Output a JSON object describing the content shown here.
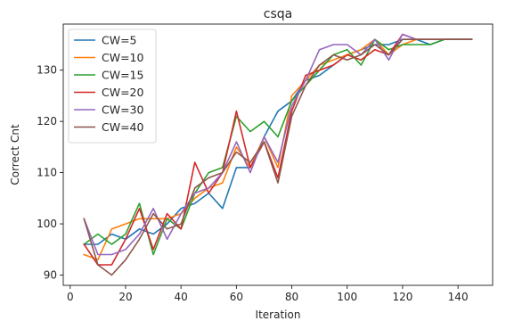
{
  "chart_data": {
    "type": "line",
    "title": "csqa",
    "xlabel": "Iteration",
    "ylabel": "Correct Cnt",
    "xlim": [
      -2.5,
      152.5
    ],
    "ylim": [
      88,
      139
    ],
    "xticks": [
      0,
      20,
      40,
      60,
      80,
      100,
      120,
      140
    ],
    "yticks": [
      90,
      100,
      110,
      120,
      130
    ],
    "grid": false,
    "legend_position": "top-left",
    "x": [
      5,
      10,
      15,
      20,
      25,
      30,
      35,
      40,
      45,
      50,
      55,
      60,
      65,
      70,
      75,
      80,
      85,
      90,
      95,
      100,
      105,
      110,
      115,
      120,
      125,
      130,
      135,
      140,
      145
    ],
    "series": [
      {
        "name": "CW=5",
        "color": "#1f77b4",
        "values": [
          96,
          96,
          98,
          97,
          99,
          98,
          100,
          103,
          104,
          106,
          103,
          111,
          111,
          117,
          122,
          124,
          128,
          129,
          131,
          133,
          134,
          135,
          135,
          136,
          136,
          135,
          136,
          136,
          136
        ]
      },
      {
        "name": "CW=10",
        "color": "#ff7f0e",
        "values": [
          94,
          93,
          99,
          100,
          101,
          101,
          101,
          102,
          105,
          107,
          108,
          115,
          111,
          117,
          111,
          125,
          128,
          131,
          132,
          133,
          134,
          136,
          133,
          135,
          136,
          136,
          136,
          136,
          136
        ]
      },
      {
        "name": "CW=15",
        "color": "#2ca02c",
        "values": [
          96,
          98,
          96,
          98,
          104,
          94,
          101,
          99,
          106,
          110,
          111,
          121,
          118,
          120,
          117,
          124,
          127,
          130,
          133,
          134,
          131,
          136,
          134,
          135,
          135,
          135,
          136,
          136,
          136
        ]
      },
      {
        "name": "CW=20",
        "color": "#d62728",
        "values": [
          96,
          92,
          92,
          97,
          103,
          95,
          102,
          99,
          112,
          106,
          110,
          122,
          111,
          116,
          109,
          122,
          129,
          130,
          131,
          133,
          132,
          134,
          133,
          137,
          136,
          136,
          136,
          136,
          136
        ]
      },
      {
        "name": "CW=30",
        "color": "#9467bd",
        "values": [
          101,
          94,
          94,
          95,
          98,
          103,
          97,
          102,
          106,
          107,
          110,
          116,
          110,
          117,
          112,
          123,
          128,
          134,
          135,
          135,
          133,
          136,
          132,
          137,
          136,
          136,
          136,
          136,
          136
        ]
      },
      {
        "name": "CW=40",
        "color": "#8c564b",
        "values": [
          101,
          92,
          90,
          93,
          97,
          102,
          99,
          100,
          107,
          109,
          110,
          114,
          112,
          116,
          108,
          121,
          127,
          131,
          133,
          132,
          133,
          135,
          133,
          136,
          136,
          136,
          136,
          136,
          136
        ]
      }
    ]
  }
}
